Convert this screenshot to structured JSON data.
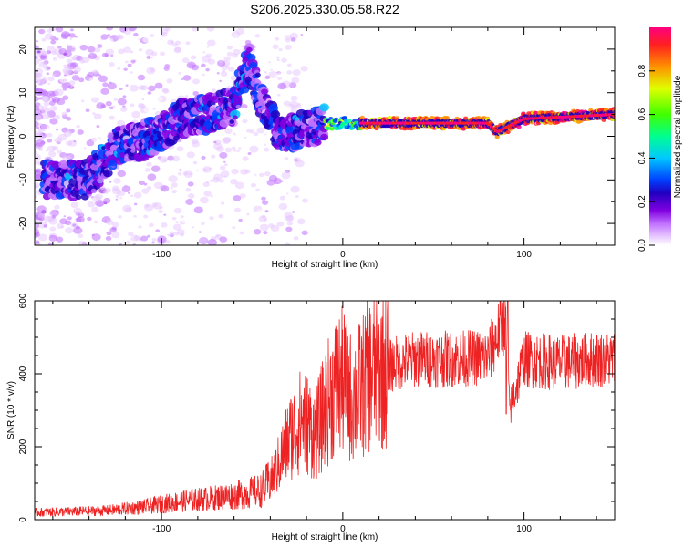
{
  "figure": {
    "title": "S206.2025.330.05.58.R22"
  },
  "colors": {
    "snr_line": "#ee2222",
    "spectral_ramp": [
      "#ffffff",
      "#e8c8ff",
      "#c070ff",
      "#8000e0",
      "#2000c0",
      "#0040ff",
      "#00c8ff",
      "#00ff90",
      "#40ff00",
      "#e0ff00",
      "#ff9000",
      "#ff2020",
      "#ff0080"
    ]
  },
  "chart_data": [
    {
      "type": "heatmap",
      "name": "spectrogram",
      "title": "S206.2025.330.05.58.R22",
      "xlabel": "Height of straight line (km)",
      "ylabel": "Frequency (Hz)",
      "xlim": [
        -170,
        150
      ],
      "ylim": [
        -25,
        25
      ],
      "xticks": [
        -100,
        0,
        100
      ],
      "yticks": [
        -20,
        -10,
        0,
        10,
        20
      ],
      "colorbar": {
        "label": "Normalized spectral amplitude",
        "range": [
          0,
          1
        ],
        "ticks": [
          0.0,
          0.2,
          0.4,
          0.6,
          0.8
        ]
      },
      "ridge": {
        "description_points": [
          {
            "x": -140,
            "y": -10
          },
          {
            "x": -125,
            "y": -2
          },
          {
            "x": -110,
            "y": -1
          },
          {
            "x": -100,
            "y": 1
          },
          {
            "x": -90,
            "y": 4
          },
          {
            "x": -75,
            "y": 5
          },
          {
            "x": -60,
            "y": 7
          },
          {
            "x": -52,
            "y": 17
          },
          {
            "x": -45,
            "y": 8
          },
          {
            "x": -35,
            "y": 0
          },
          {
            "x": -25,
            "y": 1
          },
          {
            "x": -10,
            "y": 3
          },
          {
            "x": 0,
            "y": 3
          },
          {
            "x": 50,
            "y": 3
          },
          {
            "x": 80,
            "y": 3
          },
          {
            "x": 85,
            "y": 1
          },
          {
            "x": 100,
            "y": 4
          },
          {
            "x": 150,
            "y": 5
          }
        ],
        "peak_amplitude_range_x": [
          10,
          150
        ]
      }
    },
    {
      "type": "line",
      "name": "snr",
      "xlabel": "Height of straight line (km)",
      "ylabel": "SNR (10 * v/v)",
      "xlim": [
        -170,
        150
      ],
      "ylim": [
        0,
        600
      ],
      "xticks": [
        -100,
        0,
        100
      ],
      "yticks": [
        0,
        200,
        400,
        600
      ],
      "series": [
        {
          "name": "SNR",
          "x": [
            -170,
            -150,
            -130,
            -110,
            -90,
            -70,
            -55,
            -45,
            -38,
            -30,
            -22,
            -15,
            -10,
            -5,
            0,
            5,
            10,
            15,
            20,
            25,
            30,
            40,
            60,
            80,
            90,
            92,
            100,
            120,
            140,
            150
          ],
          "values": [
            20,
            22,
            25,
            35,
            50,
            60,
            70,
            80,
            120,
            220,
            280,
            230,
            300,
            360,
            380,
            330,
            360,
            400,
            410,
            420,
            430,
            440,
            440,
            445,
            560,
            300,
            440,
            430,
            440,
            440
          ]
        }
      ]
    }
  ]
}
